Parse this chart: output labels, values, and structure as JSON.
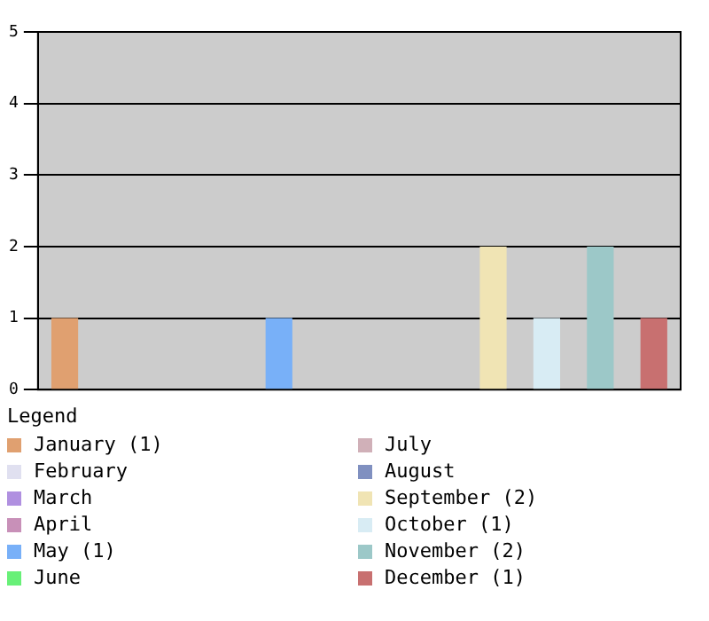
{
  "chart_data": {
    "type": "bar",
    "legend_title": "Legend",
    "categories": [
      null,
      null,
      null,
      null,
      null,
      null,
      null,
      null,
      null,
      null,
      null,
      null
    ],
    "series": [
      {
        "name": "January (1)",
        "color": "#e0a070",
        "values": [
          1,
          null,
          null,
          null,
          null,
          null,
          null,
          null,
          null,
          null,
          null,
          null
        ]
      },
      {
        "name": "February",
        "color": "#e0e0f0",
        "values": [
          null,
          0,
          null,
          null,
          null,
          null,
          null,
          null,
          null,
          null,
          null,
          null
        ]
      },
      {
        "name": "March",
        "color": "#b090e0",
        "values": [
          null,
          null,
          0,
          null,
          null,
          null,
          null,
          null,
          null,
          null,
          null,
          null
        ]
      },
      {
        "name": "April",
        "color": "#c890b8",
        "values": [
          null,
          null,
          null,
          0,
          null,
          null,
          null,
          null,
          null,
          null,
          null,
          null
        ]
      },
      {
        "name": "May (1)",
        "color": "#78b0f8",
        "values": [
          null,
          null,
          null,
          null,
          1,
          null,
          null,
          null,
          null,
          null,
          null,
          null
        ]
      },
      {
        "name": "June",
        "color": "#68f078",
        "values": [
          null,
          null,
          null,
          null,
          null,
          0,
          null,
          null,
          null,
          null,
          null,
          null
        ]
      },
      {
        "name": "July",
        "color": "#d0b0b8",
        "values": [
          null,
          null,
          null,
          null,
          null,
          null,
          0,
          null,
          null,
          null,
          null,
          null
        ]
      },
      {
        "name": "August",
        "color": "#8090c0",
        "values": [
          null,
          null,
          null,
          null,
          null,
          null,
          null,
          0,
          null,
          null,
          null,
          null
        ]
      },
      {
        "name": "September (2)",
        "color": "#f0e4b4",
        "values": [
          null,
          null,
          null,
          null,
          null,
          null,
          null,
          null,
          2,
          null,
          null,
          null
        ]
      },
      {
        "name": "October (1)",
        "color": "#d8ecf4",
        "values": [
          null,
          null,
          null,
          null,
          null,
          null,
          null,
          null,
          null,
          1,
          null,
          null
        ]
      },
      {
        "name": "November (2)",
        "color": "#9cc8c8",
        "values": [
          null,
          null,
          null,
          null,
          null,
          null,
          null,
          null,
          null,
          null,
          2,
          null
        ]
      },
      {
        "name": "December (1)",
        "color": "#c87070",
        "values": [
          null,
          null,
          null,
          null,
          null,
          null,
          null,
          null,
          null,
          null,
          null,
          1
        ]
      }
    ],
    "ylim": [
      0,
      5
    ],
    "yticks": [
      0,
      1,
      2,
      3,
      4,
      5
    ],
    "grid": "y",
    "legend": "bottom",
    "tick_labels": "y"
  }
}
